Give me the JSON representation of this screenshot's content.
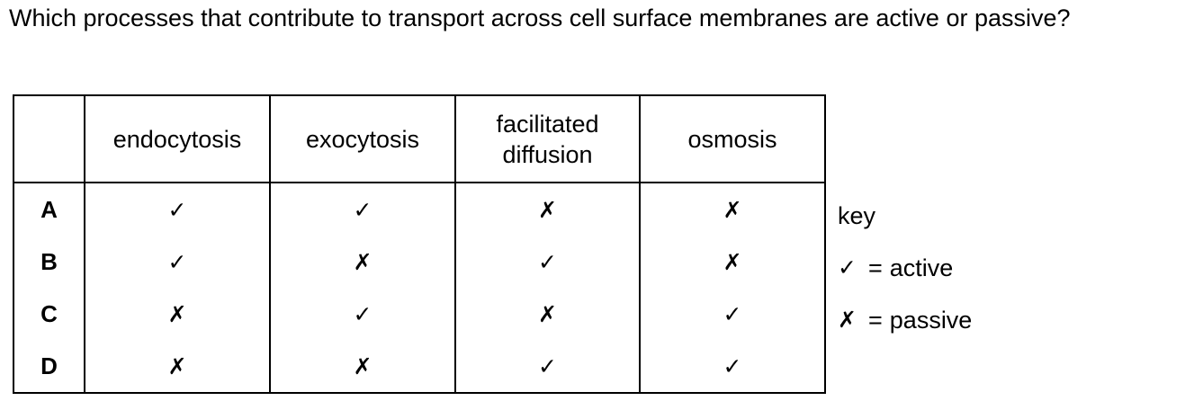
{
  "question": "Which processes that contribute to transport across cell surface membranes are active or passive?",
  "symbols": {
    "tick": "✓",
    "cross": "✗"
  },
  "table": {
    "headers": [
      "",
      "endocytosis",
      "exocytosis",
      "facilitated diffusion",
      "osmosis"
    ],
    "rows": [
      {
        "label": "A",
        "cells": [
          "✓",
          "✓",
          "✗",
          "✗"
        ]
      },
      {
        "label": "B",
        "cells": [
          "✓",
          "✗",
          "✓",
          "✗"
        ]
      },
      {
        "label": "C",
        "cells": [
          "✗",
          "✓",
          "✗",
          "✓"
        ]
      },
      {
        "label": "D",
        "cells": [
          "✗",
          "✗",
          "✓",
          "✓"
        ]
      }
    ]
  },
  "key": {
    "title": "key",
    "items": [
      {
        "symbol": "✓",
        "equals": "=",
        "meaning": "active"
      },
      {
        "symbol": "✗",
        "equals": "=",
        "meaning": "passive"
      }
    ]
  }
}
